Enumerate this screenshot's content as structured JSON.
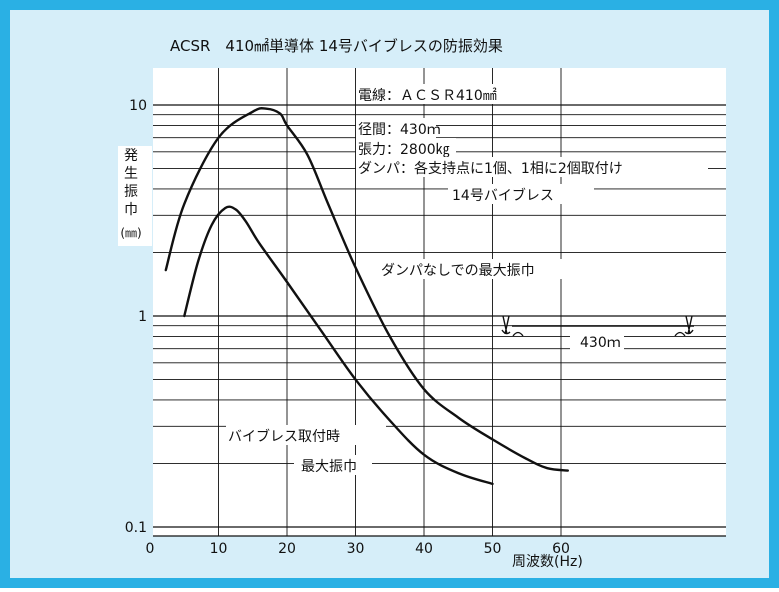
{
  "colors": {
    "frame": "#2ab0e4",
    "panel": "#d6eef9",
    "ink": "#111111"
  },
  "chart_data": {
    "type": "line",
    "title": "ACSR　410㎟単導体 14号バイブレスの防振効果",
    "xlabel": "周波数(Hz)",
    "ylabel": "発生振巾(㎜)",
    "xlim": [
      0,
      85
    ],
    "ylim": [
      0.1,
      10
    ],
    "y_scale": "log",
    "x_ticks": [
      "0",
      "10",
      "20",
      "30",
      "40",
      "50",
      "60"
    ],
    "x_tick_values": [
      0,
      10,
      20,
      30,
      40,
      50,
      60
    ],
    "y_ticks": [
      "0.1",
      "1",
      "10"
    ],
    "y_tick_values": [
      0.1,
      1,
      10
    ],
    "series": [
      {
        "name": "ダンパなしでの最大振巾",
        "x": [
          2.3,
          5,
          10,
          15,
          17,
          19,
          20,
          23,
          26,
          30,
          35,
          40,
          45,
          50,
          55,
          58,
          61
        ],
        "y": [
          1.65,
          3.4,
          7.0,
          9.3,
          9.6,
          9.1,
          8.0,
          5.8,
          3.4,
          1.7,
          0.8,
          0.45,
          0.33,
          0.26,
          0.21,
          0.19,
          0.185
        ]
      },
      {
        "name": "バイブレス取付時 最大振巾",
        "x": [
          5,
          7,
          9,
          11,
          12.5,
          14,
          16,
          20,
          25,
          30,
          35,
          40,
          45,
          50
        ],
        "y": [
          1.0,
          1.8,
          2.7,
          3.25,
          3.2,
          2.8,
          2.2,
          1.45,
          0.85,
          0.5,
          0.32,
          0.22,
          0.18,
          0.16
        ]
      }
    ],
    "conditions": [
      "電線：ＡＣＳＲ410㎟",
      "径間：430ｍ",
      "張力：2800㎏",
      "ダンパ：各支持点に1個、1相に2個取付け",
      "14号バイブレス"
    ],
    "span_label": "430ｍ",
    "annotations": [
      "ダンパなしでの最大振巾",
      "バイブレス取付時",
      "最大振巾"
    ],
    "grid": true
  }
}
